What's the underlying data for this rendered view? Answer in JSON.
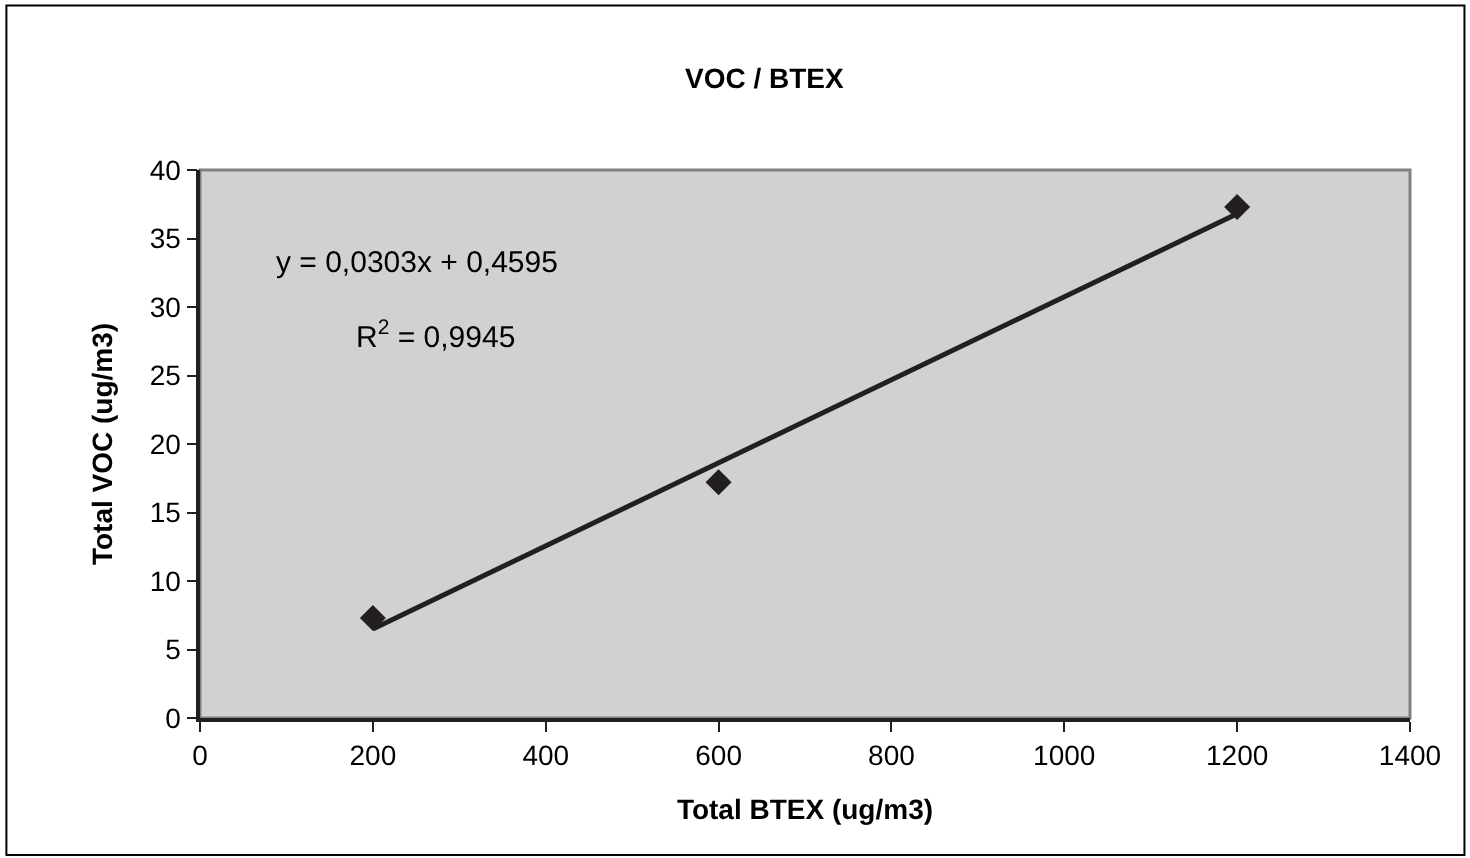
{
  "chart_data": {
    "type": "scatter",
    "title": "VOC / BTEX",
    "xlabel": "Total BTEX (ug/m3)",
    "ylabel": "Total VOC (ug/m3)",
    "series": [
      {
        "color": "#231f20",
        "marker": "diamond",
        "x": [
          200,
          600,
          1200
        ],
        "values": [
          7.3,
          17.2,
          37.3
        ]
      },
      {
        "type": "line",
        "color": "#231f20",
        "marker": "none",
        "line_style": "solid",
        "x": [
          200,
          1200
        ],
        "values": [
          6.5,
          36.8
        ]
      }
    ],
    "annotations": [
      "y = 0,0303x + 0,4595",
      "R$^{2}$ = 0,9945"
    ],
    "xlim": [
      0,
      1400
    ],
    "xticks": [
      0,
      200,
      400,
      600,
      800,
      1000,
      1200,
      1400
    ],
    "ylim": [
      0,
      40
    ],
    "yticks": [
      0,
      5,
      10,
      15,
      20,
      25,
      30,
      35,
      40
    ],
    "grid": false
  }
}
